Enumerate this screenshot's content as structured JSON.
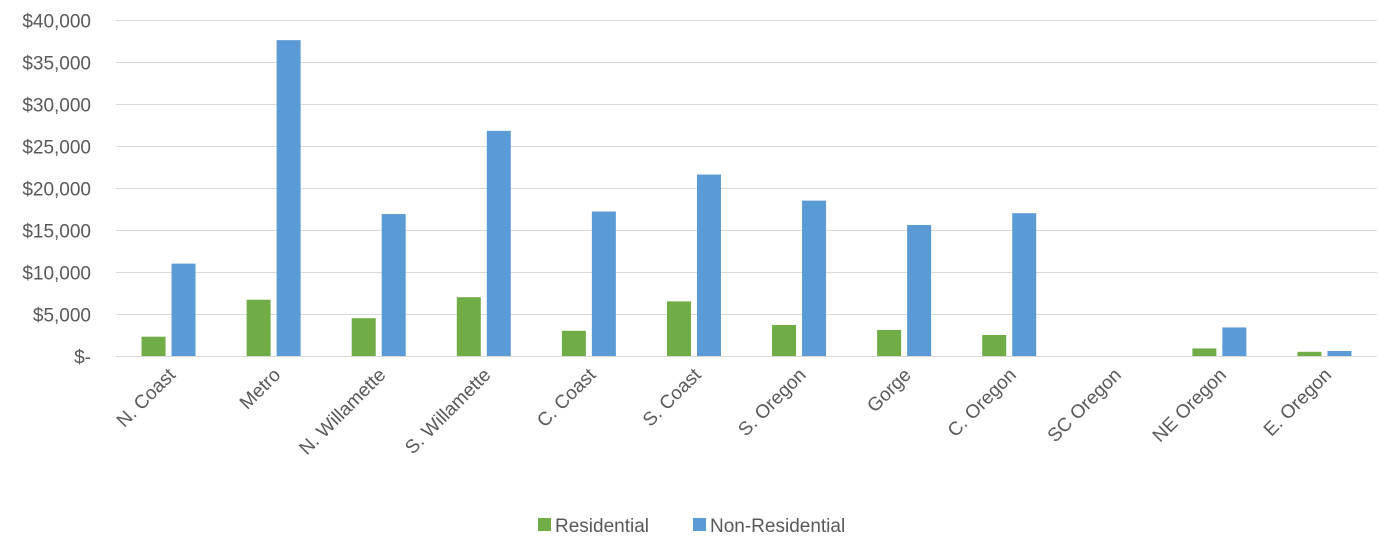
{
  "chart_data": {
    "type": "bar",
    "title": "",
    "xlabel": "",
    "ylabel": "",
    "ylim": [
      0,
      40000
    ],
    "yticks": [
      0,
      5000,
      10000,
      15000,
      20000,
      25000,
      30000,
      35000,
      40000
    ],
    "ytick_labels": [
      "$-",
      "$5,000",
      "$10,000",
      "$15,000",
      "$20,000",
      "$25,000",
      "$30,000",
      "$35,000",
      "$40,000"
    ],
    "grid": true,
    "legend_position": "bottom",
    "categories": [
      "N. Coast",
      "Metro",
      "N. Willamette",
      "S. Willamette",
      "C. Coast",
      "S. Coast",
      "S. Oregon",
      "Gorge",
      "C. Oregon",
      "SC Oregon",
      "NE Oregon",
      "E. Oregon"
    ],
    "series": [
      {
        "name": "Residential",
        "color": "#70AD47",
        "values": [
          2300,
          6700,
          4500,
          7000,
          3000,
          6500,
          3700,
          3100,
          2500,
          0,
          900,
          500
        ]
      },
      {
        "name": "Non-Residential",
        "color": "#5B9BD5",
        "values": [
          11000,
          37600,
          16900,
          26800,
          17200,
          21600,
          18500,
          15600,
          17000,
          0,
          3400,
          600
        ]
      }
    ]
  }
}
